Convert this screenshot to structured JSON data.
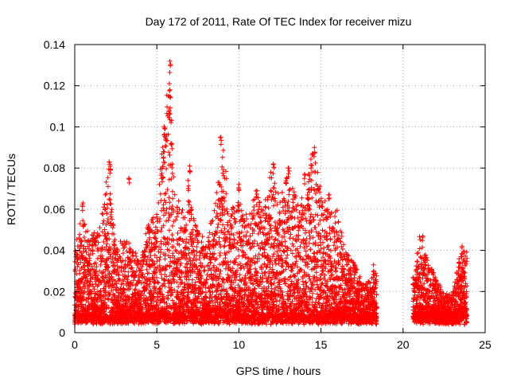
{
  "chart_data": {
    "type": "scatter",
    "title": "Day 172 of 2011, Rate Of TEC Index for receiver mizu",
    "xlabel": "GPS time / hours",
    "ylabel": "ROTI / TECUs",
    "xlim": [
      0,
      25
    ],
    "ylim": [
      0,
      0.14
    ],
    "x_ticks": [
      0,
      5,
      10,
      15,
      20,
      25
    ],
    "x_tick_labels": [
      "0",
      "5",
      "10",
      "15",
      "20",
      "25"
    ],
    "y_ticks": [
      0,
      0.02,
      0.04,
      0.06,
      0.08,
      0.1,
      0.12,
      0.14
    ],
    "y_tick_labels": [
      "0",
      "0.02",
      "0.04",
      "0.06",
      "0.08",
      "0.1",
      "0.12",
      "0.14"
    ],
    "grid": true,
    "marker": "+",
    "color": "#ff0000",
    "series": [
      {
        "name": "ROTI",
        "envelope": [
          [
            0.0,
            0.045
          ],
          [
            0.5,
            0.058
          ],
          [
            1.0,
            0.048
          ],
          [
            1.5,
            0.05
          ],
          [
            2.0,
            0.082
          ],
          [
            2.5,
            0.04
          ],
          [
            3.0,
            0.048
          ],
          [
            3.5,
            0.042
          ],
          [
            4.0,
            0.035
          ],
          [
            4.5,
            0.055
          ],
          [
            5.0,
            0.058
          ],
          [
            5.5,
            0.11
          ],
          [
            5.8,
            0.132
          ],
          [
            6.0,
            0.08
          ],
          [
            6.5,
            0.06
          ],
          [
            7.0,
            0.065
          ],
          [
            7.5,
            0.05
          ],
          [
            8.0,
            0.045
          ],
          [
            8.5,
            0.06
          ],
          [
            9.0,
            0.095
          ],
          [
            9.5,
            0.06
          ],
          [
            10.0,
            0.065
          ],
          [
            10.5,
            0.06
          ],
          [
            11.0,
            0.07
          ],
          [
            11.5,
            0.06
          ],
          [
            12.0,
            0.082
          ],
          [
            12.5,
            0.065
          ],
          [
            13.0,
            0.08
          ],
          [
            13.5,
            0.07
          ],
          [
            14.0,
            0.065
          ],
          [
            14.5,
            0.09
          ],
          [
            15.0,
            0.07
          ],
          [
            15.5,
            0.06
          ],
          [
            16.0,
            0.06
          ],
          [
            16.5,
            0.04
          ],
          [
            17.0,
            0.035
          ],
          [
            17.5,
            0.025
          ],
          [
            18.0,
            0.025
          ],
          [
            18.3,
            0.03
          ],
          [
            20.7,
            0.03
          ],
          [
            21.0,
            0.048
          ],
          [
            21.5,
            0.035
          ],
          [
            22.0,
            0.028
          ],
          [
            22.5,
            0.02
          ],
          [
            23.0,
            0.018
          ],
          [
            23.5,
            0.04
          ],
          [
            23.8,
            0.04
          ]
        ],
        "gaps": [
          [
            18.4,
            20.6
          ]
        ],
        "x_range": [
          0.0,
          23.9
        ],
        "typical_floor": 0.004
      }
    ],
    "notable_points": [
      {
        "x": 5.8,
        "y": 0.132
      },
      {
        "x": 5.8,
        "y": 0.118
      },
      {
        "x": 5.75,
        "y": 0.108
      },
      {
        "x": 5.5,
        "y": 0.099
      },
      {
        "x": 5.6,
        "y": 0.096
      },
      {
        "x": 8.9,
        "y": 0.095
      },
      {
        "x": 14.6,
        "y": 0.09
      },
      {
        "x": 2.1,
        "y": 0.083
      },
      {
        "x": 2.15,
        "y": 0.081
      },
      {
        "x": 7.0,
        "y": 0.081
      },
      {
        "x": 12.1,
        "y": 0.082
      },
      {
        "x": 13.0,
        "y": 0.08
      },
      {
        "x": 5.4,
        "y": 0.088
      },
      {
        "x": 3.3,
        "y": 0.075
      },
      {
        "x": 6.9,
        "y": 0.074
      },
      {
        "x": 10.0,
        "y": 0.072
      },
      {
        "x": 11.1,
        "y": 0.069
      },
      {
        "x": 14.0,
        "y": 0.077
      },
      {
        "x": 14.2,
        "y": 0.065
      },
      {
        "x": 15.5,
        "y": 0.067
      },
      {
        "x": 0.5,
        "y": 0.063
      },
      {
        "x": 21.2,
        "y": 0.047
      },
      {
        "x": 23.6,
        "y": 0.042
      },
      {
        "x": 18.2,
        "y": 0.033
      }
    ]
  }
}
